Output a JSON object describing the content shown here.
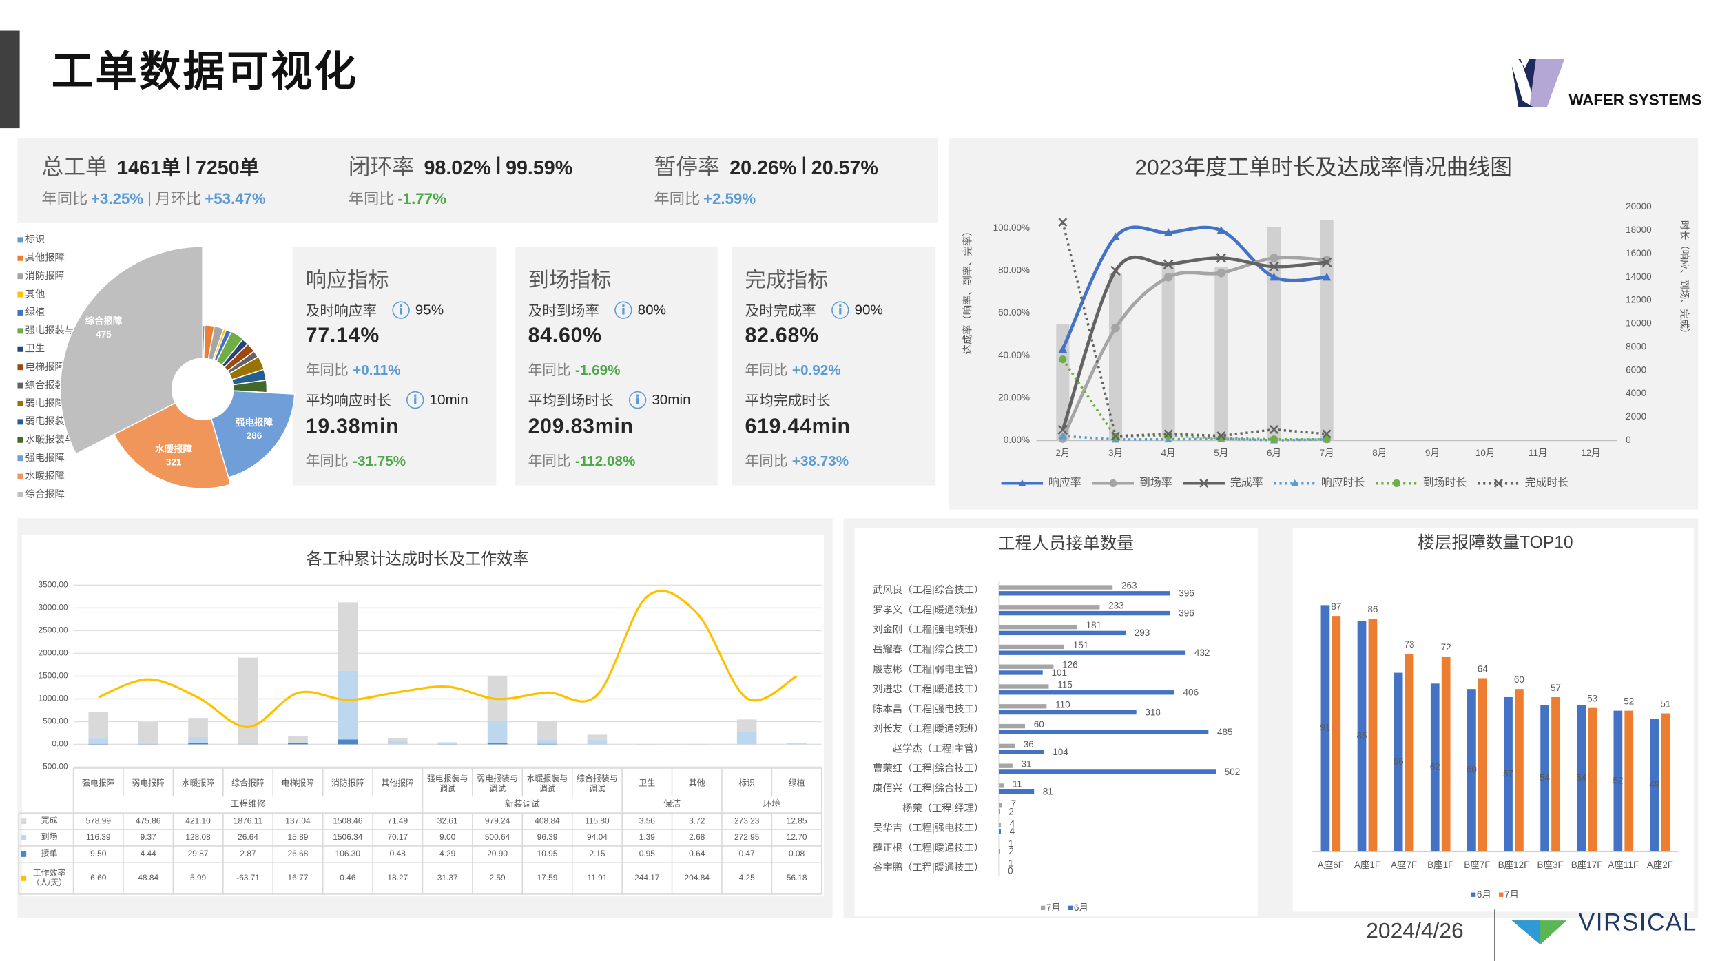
{
  "header": {
    "title": "工单数据可视化",
    "logo": "WAFER SYSTEMS"
  },
  "footer": {
    "date": "2024/4/26",
    "logo": "VIRSICAL"
  },
  "summary": [
    {
      "label": "总工单",
      "values": [
        "1461单",
        "7250单"
      ],
      "compare": [
        {
          "label": "年同比",
          "value": "+3.25%"
        },
        {
          "label": "月环比",
          "value": "+53.47%"
        }
      ]
    },
    {
      "label": "闭环率",
      "values": [
        "98.02%",
        "99.59%"
      ],
      "compare": [
        {
          "label": "年同比",
          "value": "-1.77%"
        }
      ]
    },
    {
      "label": "暂停率",
      "values": [
        "20.26%",
        "20.57%"
      ],
      "compare": [
        {
          "label": "年同比",
          "value": "+2.59%"
        }
      ]
    }
  ],
  "metrics": [
    {
      "title": "响应指标",
      "rate_label": "及时响应率",
      "target": "95%",
      "rate": "77.14%",
      "rate_compare": {
        "label": "年同比",
        "value": "+0.11%"
      },
      "time_label": "平均响应时长",
      "time_target": "10min",
      "time": "19.38min",
      "time_compare": {
        "label": "年同比",
        "value": "-31.75%"
      }
    },
    {
      "title": "到场指标",
      "rate_label": "及时到场率",
      "target": "80%",
      "rate": "84.60%",
      "rate_compare": {
        "label": "年同比",
        "value": "-1.69%"
      },
      "time_label": "平均到场时长",
      "time_target": "30min",
      "time": "209.83min",
      "time_compare": {
        "label": "年同比",
        "value": "-112.08%"
      }
    },
    {
      "title": "完成指标",
      "rate_label": "及时完成率",
      "target": "90%",
      "rate": "82.68%",
      "rate_compare": {
        "label": "年同比",
        "value": "+0.92%"
      },
      "time_label": "平均完成时长",
      "time": "619.44min",
      "time_compare": {
        "label": "年同比",
        "value": "+38.73%"
      }
    }
  ],
  "chart_data": [
    {
      "type": "pie",
      "categories": [
        "标识",
        "其他报障",
        "消防报障",
        "其他",
        "绿植",
        "强电报装与调试",
        "卫生",
        "电梯报障",
        "综合报装与服务",
        "弱电报障",
        "弱电报装与调试",
        "水暖报装与调试",
        "强电报障",
        "水暖报障",
        "综合报障"
      ],
      "values": [
        8,
        35,
        35,
        10,
        20,
        50,
        25,
        35,
        25,
        50,
        40,
        45,
        286,
        321,
        475
      ],
      "colors": [
        "#5b9bd5",
        "#ed7d31",
        "#a5a5a5",
        "#ffc000",
        "#4472c4",
        "#70ad47",
        "#264478",
        "#9e480e",
        "#636363",
        "#997300",
        "#255e91",
        "#43682b",
        "#6f9ed8",
        "#f0965a",
        "#bfbfbf"
      ]
    },
    {
      "type": "line",
      "title": "2023年度工单时长及达成率情况曲线图",
      "ylabel": "达成率（响率、到率、完率）",
      "y2label": "时长（响应、到场、完成）",
      "categories": [
        "2月",
        "3月",
        "4月",
        "5月",
        "6月",
        "7月",
        "8月",
        "9月",
        "10月",
        "11月",
        "12月"
      ],
      "ylim": [
        0,
        110
      ],
      "yticks": [
        {
          "value": 0,
          "label": "0.00%"
        },
        {
          "value": 20,
          "label": "20.00%"
        },
        {
          "value": 40,
          "label": "40.00%"
        },
        {
          "value": 60,
          "label": "60.00%"
        },
        {
          "value": 80,
          "label": "80.00%"
        },
        {
          "value": 100,
          "label": "100.00%"
        }
      ],
      "y2lim": [
        0,
        20000
      ],
      "y2ticks": [
        0,
        2000,
        4000,
        6000,
        8000,
        10000,
        12000,
        14000,
        16000,
        18000,
        20000
      ],
      "series": [
        {
          "type": "bar",
          "axis": "y2",
          "color": "#d0d0d0",
          "values": [
            10000,
            14300,
            15200,
            14900,
            18300,
            18900,
            null,
            null,
            null,
            null,
            null
          ]
        },
        {
          "name": "响应率",
          "color": "#4472c4",
          "marker": "triangle",
          "smooth": true,
          "values": [
            43,
            96,
            98,
            99,
            77,
            77,
            null,
            null,
            null,
            null,
            null
          ]
        },
        {
          "name": "到场率",
          "color": "#a5a5a5",
          "marker": "circle",
          "smooth": true,
          "values": [
            1,
            53,
            77,
            79,
            86,
            85,
            null,
            null,
            null,
            null,
            null
          ]
        },
        {
          "name": "完成率",
          "color": "#636363",
          "marker": "x",
          "smooth": true,
          "values": [
            5,
            80,
            83,
            86,
            82,
            84,
            null,
            null,
            null,
            null,
            null
          ]
        },
        {
          "name": "响应时长",
          "axis": "y2",
          "color": "#5b9bd5",
          "marker": "triangle",
          "dash": true,
          "values": [
            380,
            90,
            100,
            150,
            20,
            90,
            null,
            null,
            null,
            null,
            null
          ]
        },
        {
          "name": "到场时长",
          "axis": "y2",
          "color": "#70ad47",
          "marker": "circle",
          "dash": true,
          "values": [
            6950,
            300,
            400,
            200,
            100,
            100,
            null,
            null,
            null,
            null,
            null
          ]
        },
        {
          "name": "完成时长",
          "axis": "y2",
          "color": "#636363",
          "marker": "x",
          "dash": true,
          "values": [
            18700,
            380,
            560,
            400,
            940,
            560,
            null,
            null,
            null,
            null,
            null
          ]
        }
      ]
    },
    {
      "type": "bar",
      "title": "各工种累计达成时长及工作效率",
      "categories": [
        "强电报障",
        "弱电报障",
        "水暖报障",
        "综合报障",
        "电梯报障",
        "消防报障",
        "其他报障",
        "强电报装与调试",
        "弱电报装与调试",
        "水暖报装与调试",
        "综合报装与调试",
        "卫生",
        "其他",
        "标识",
        "绿植"
      ],
      "groups": [
        {
          "label": "工程维修",
          "count": 7
        },
        {
          "label": "新装调试",
          "count": 4
        },
        {
          "label": "保洁",
          "count": 2
        },
        {
          "label": "环境",
          "count": 2
        }
      ],
      "ylim": [
        -500,
        3500
      ],
      "yticks": [
        {
          "value": -500,
          "label": "-500.00"
        },
        {
          "value": 0,
          "label": "0.00"
        },
        {
          "value": 500,
          "label": "500.00"
        },
        {
          "value": 1000,
          "label": "1000.00"
        },
        {
          "value": 1500,
          "label": "1500.00"
        },
        {
          "value": 2000,
          "label": "2000.00"
        },
        {
          "value": 2500,
          "label": "2500.00"
        },
        {
          "value": 3000,
          "label": "3000.00"
        },
        {
          "value": 3500,
          "label": "3500.00"
        }
      ],
      "y2lim": [
        -158,
        271
      ],
      "grid": true,
      "series": [
        {
          "name": "完成",
          "color": "#d9d9d9",
          "values": [
            578.99,
            475.86,
            421.1,
            1876.11,
            137.04,
            1508.46,
            71.49,
            32.61,
            979.24,
            408.84,
            115.8,
            3.56,
            3.72,
            273.23,
            12.85
          ],
          "value_labels": [
            "578.99",
            "475.86",
            "421.10",
            "1876.11",
            "137.04",
            "1508.46",
            "71.49",
            "32.61",
            "979.24",
            "408.84",
            "115.80",
            "3.56",
            "3.72",
            "273.23",
            "12.85"
          ]
        },
        {
          "name": "到场",
          "color": "#bdd7ee",
          "values": [
            116.39,
            9.37,
            128.08,
            26.64,
            15.89,
            1506.34,
            70.17,
            9,
            500.64,
            96.39,
            94.04,
            1.39,
            2.68,
            272.95,
            12.7
          ],
          "value_labels": [
            "116.39",
            "9.37",
            "128.08",
            "26.64",
            "15.89",
            "1506.34",
            "70.17",
            "9.00",
            "500.64",
            "96.39",
            "94.04",
            "1.39",
            "2.68",
            "272.95",
            "12.70"
          ]
        },
        {
          "name": "接单",
          "color": "#4a86c8",
          "values": [
            9.5,
            4.44,
            29.87,
            2.87,
            26.68,
            106.3,
            0.48,
            4.29,
            20.9,
            10.95,
            2.15,
            0.95,
            0.64,
            0.47,
            0.08
          ],
          "value_labels": [
            "9.50",
            "4.44",
            "29.87",
            "2.87",
            "26.68",
            "106.30",
            "0.48",
            "4.29",
            "20.90",
            "10.95",
            "2.15",
            "0.95",
            "0.64",
            "0.47",
            "0.08"
          ]
        },
        {
          "name": "工作效率（人/天）",
          "axis": "y2",
          "color": "#ffc000",
          "smooth": true,
          "values": [
            6.6,
            48.84,
            5.99,
            -63.71,
            16.77,
            0.46,
            18.27,
            31.37,
            2.59,
            17.59,
            11.91,
            244.17,
            204.84,
            4.25,
            56.18
          ],
          "value_labels": [
            "6.60",
            "48.84",
            "5.99",
            "-63.71",
            "16.77",
            "0.46",
            "18.27",
            "31.37",
            "2.59",
            "17.59",
            "11.91",
            "244.17",
            "204.84",
            "4.25",
            "56.18"
          ]
        }
      ]
    },
    {
      "type": "hbar",
      "title": "工程人员接单数量",
      "categories": [
        "武风良（工程|综合技工）",
        "罗孝义（工程|暖通领班）",
        "刘金刚（工程|强电领班）",
        "岳耀春（工程|综合技工）",
        "殷志彬（工程|弱电主管）",
        "刘进忠（工程|暖通技工）",
        "陈本昌（工程|强电技工）",
        "刘长友（工程|暖通领班）",
        "赵学杰（工程|主管）",
        "曹荣红（工程|综合技工）",
        "康佰兴（工程|综合技工）",
        "杨荣（工程|经理）",
        "吴华吉（工程|强电技工）",
        "薛正根（工程|暖通技工）",
        "谷宇鹏（工程|暖通技工）"
      ],
      "xlim": [
        0,
        580
      ],
      "series": [
        {
          "name": "7月",
          "color": "#a5a5a5",
          "values": [
            263,
            233,
            181,
            151,
            126,
            115,
            110,
            60,
            36,
            31,
            11,
            7,
            4,
            1,
            1
          ]
        },
        {
          "name": "6月",
          "color": "#4472c4",
          "values": [
            396,
            396,
            293,
            432,
            101,
            406,
            318,
            485,
            104,
            502,
            81,
            2,
            4,
            2,
            0
          ]
        }
      ]
    },
    {
      "type": "bar",
      "title": "楼层报障数量TOP10",
      "categories": [
        "A座6F",
        "A座1F",
        "A座7F",
        "B座1F",
        "B座7F",
        "B座12F",
        "B座3F",
        "B座17F",
        "A座11F",
        "A座2F"
      ],
      "ylim": [
        0,
        100
      ],
      "series": [
        {
          "name": "6月",
          "color": "#4472c4",
          "values": [
            91,
            85,
            66,
            62,
            60,
            57,
            54,
            54,
            52,
            49
          ]
        },
        {
          "name": "7月",
          "color": "#ed7d31",
          "values": [
            87,
            86,
            73,
            72,
            64,
            60,
            57,
            53,
            52,
            51
          ]
        }
      ]
    }
  ]
}
